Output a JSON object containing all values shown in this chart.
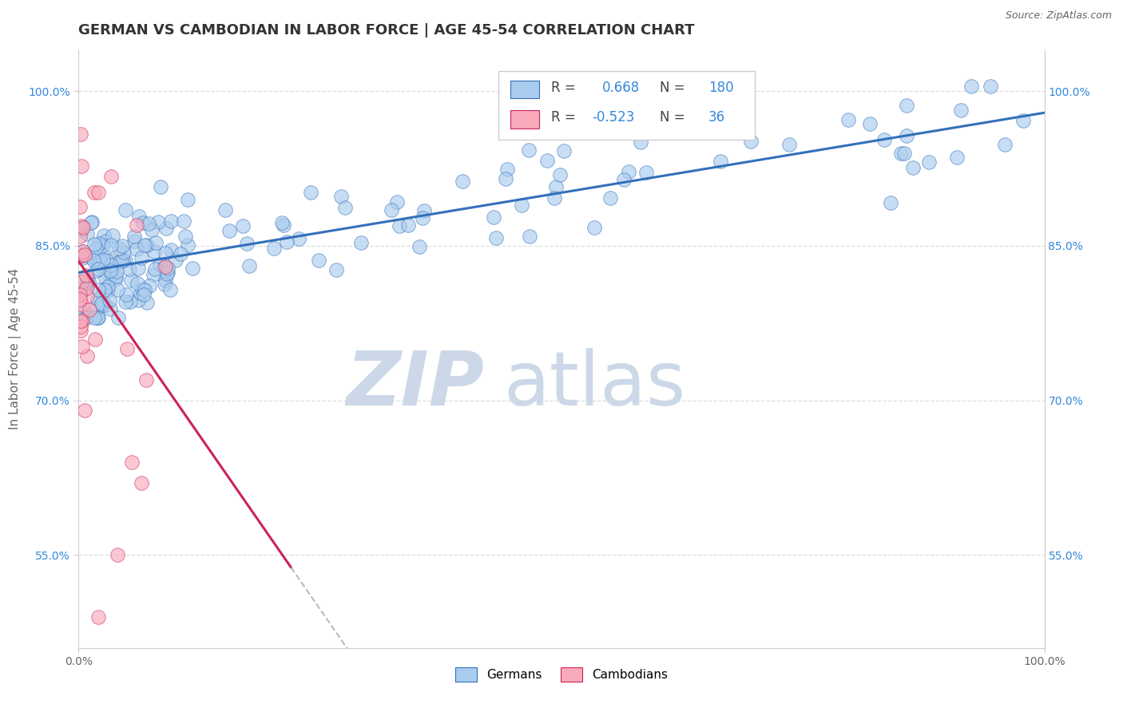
{
  "title": "GERMAN VS CAMBODIAN IN LABOR FORCE | AGE 45-54 CORRELATION CHART",
  "source_text": "Source: ZipAtlas.com",
  "ylabel": "In Labor Force | Age 45-54",
  "xlim": [
    0.0,
    1.0
  ],
  "ylim": [
    0.46,
    1.04
  ],
  "yticks": [
    0.55,
    0.7,
    0.85,
    1.0
  ],
  "ytick_labels": [
    "55.0%",
    "70.0%",
    "85.0%",
    "100.0%"
  ],
  "xtick_labels": [
    "0.0%",
    "100.0%"
  ],
  "xticks": [
    0.0,
    1.0
  ],
  "german_R": 0.668,
  "german_N": 180,
  "cambodian_R": -0.523,
  "cambodian_N": 36,
  "german_color": "#aaccee",
  "cambodian_color": "#f8aabb",
  "german_line_color": "#3370bb",
  "cambodian_line_color": "#cc2255",
  "cambodian_line_dashed_color": "#bbbbbb",
  "watermark_zip": "ZIP",
  "watermark_atlas": "atlas",
  "watermark_color": "#ccd8e8",
  "background_color": "#ffffff",
  "grid_color": "#dddddd",
  "title_color": "#333333",
  "axis_label_color": "#666666",
  "legend_R_color": "#3388dd",
  "legend_label_german": "Germans",
  "legend_label_cambodian": "Cambodians",
  "title_fontsize": 13,
  "axis_label_fontsize": 11,
  "tick_fontsize": 10,
  "source_fontsize": 9,
  "german_line_intercept": 0.824,
  "german_line_slope": 0.155,
  "cambodian_line_intercept": 0.835,
  "cambodian_line_slope": -1.35
}
